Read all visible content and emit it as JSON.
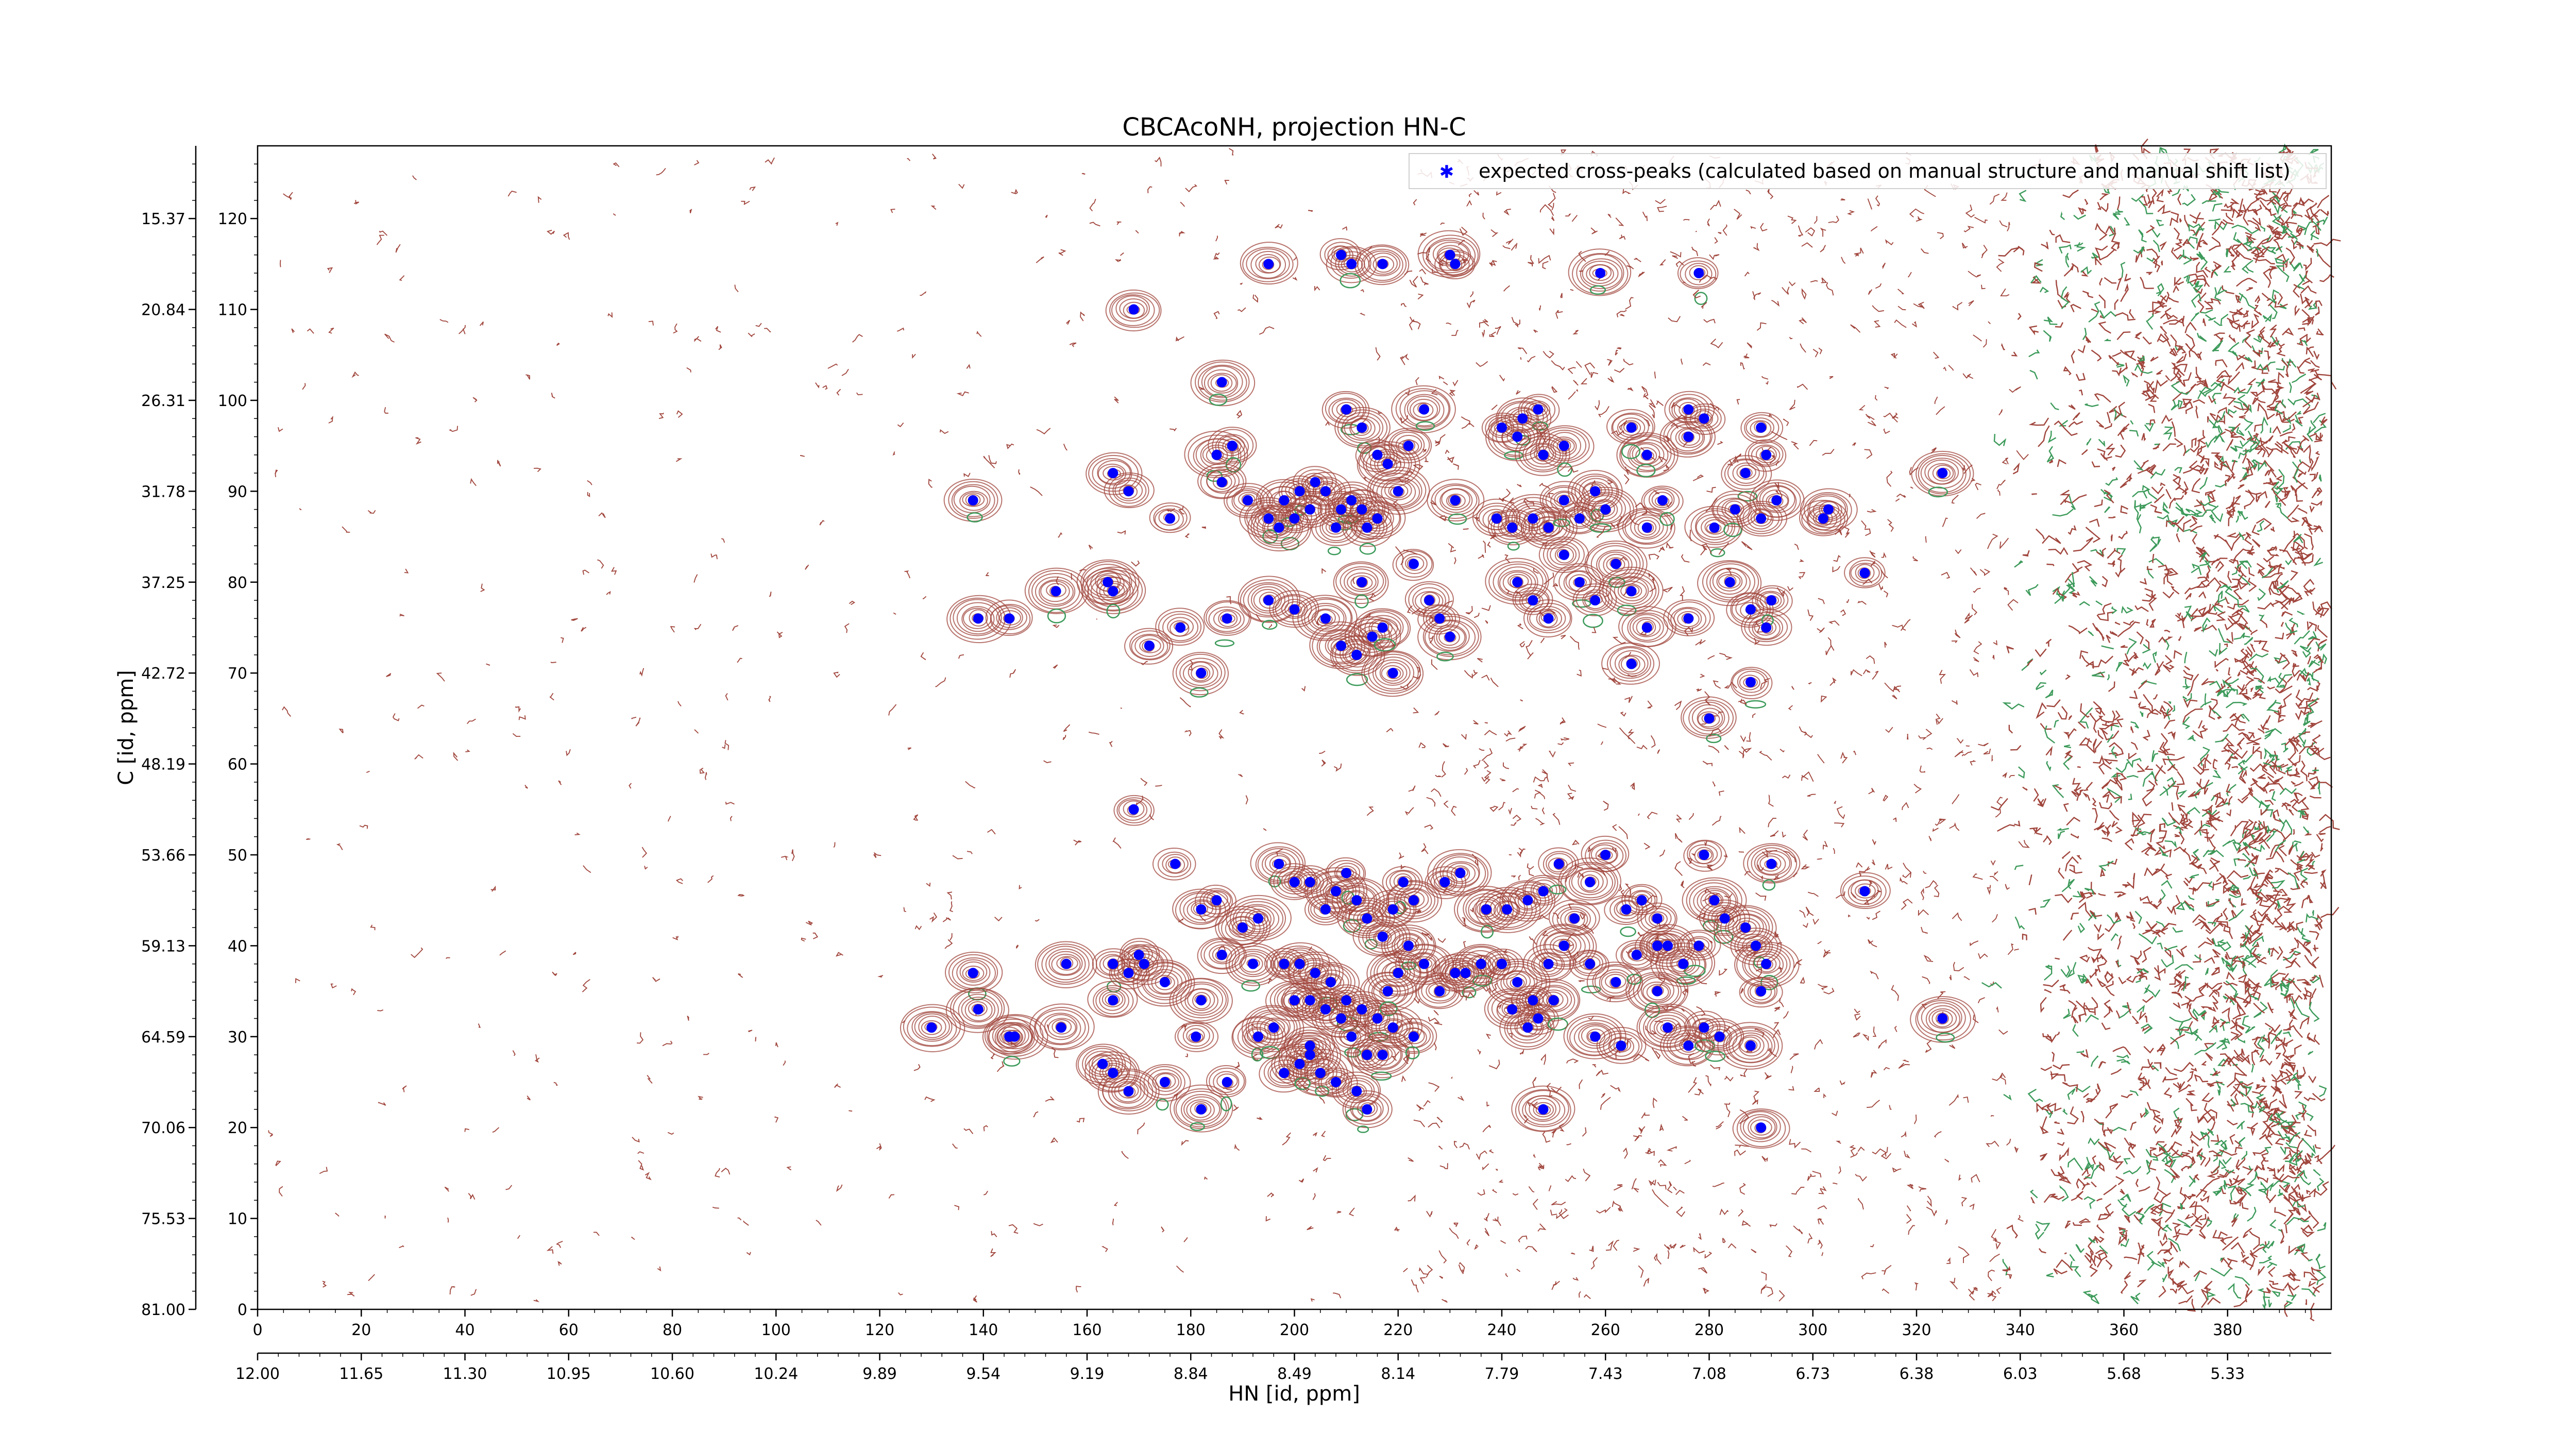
{
  "chart_data": {
    "type": "scatter",
    "title": "CBCAcoNH, projection HN-C",
    "xlabel": "HN [id, ppm]",
    "ylabel": "C [id, ppm]",
    "xlim": [
      0,
      400
    ],
    "ylim": [
      0,
      128
    ],
    "x_index_ticks": [
      "0",
      "20",
      "40",
      "60",
      "80",
      "100",
      "120",
      "140",
      "160",
      "180",
      "200",
      "220",
      "240",
      "260",
      "280",
      "300",
      "320",
      "340",
      "360",
      "380"
    ],
    "x_index_tick_values": [
      0,
      20,
      40,
      60,
      80,
      100,
      120,
      140,
      160,
      180,
      200,
      220,
      240,
      260,
      280,
      300,
      320,
      340,
      360,
      380
    ],
    "x_ppm_ticks": [
      "12.00",
      "11.65",
      "11.30",
      "10.95",
      "10.60",
      "10.24",
      "9.89",
      "9.54",
      "9.19",
      "8.84",
      "8.49",
      "8.14",
      "7.79",
      "7.43",
      "7.08",
      "6.73",
      "6.38",
      "6.03",
      "5.68",
      "5.33"
    ],
    "x_ppm_tick_values": [
      0,
      20,
      40,
      60,
      80,
      100,
      120,
      140,
      160,
      180,
      200,
      220,
      240,
      260,
      280,
      300,
      320,
      340,
      360,
      380
    ],
    "y_index_ticks": [
      "0",
      "10",
      "20",
      "30",
      "40",
      "50",
      "60",
      "70",
      "80",
      "90",
      "100",
      "110",
      "120"
    ],
    "y_index_tick_values": [
      0,
      10,
      20,
      30,
      40,
      50,
      60,
      70,
      80,
      90,
      100,
      110,
      120
    ],
    "y_ppm_ticks": [
      "81.00",
      "75.53",
      "70.06",
      "64.59",
      "59.13",
      "53.66",
      "48.19",
      "42.72",
      "37.25",
      "31.78",
      "26.31",
      "20.84",
      "15.37"
    ],
    "y_ppm_tick_values": [
      0,
      10,
      20,
      30,
      40,
      50,
      60,
      70,
      80,
      90,
      100,
      110,
      120
    ],
    "legend": {
      "label": "expected cross-peaks (calculated based on manual structure and manual shift list)",
      "position": "top-right"
    },
    "colors": {
      "peaks": "#0000ff",
      "positive_contours": "#a0453c",
      "negative_contours": "#3c9a5a"
    },
    "series": [
      {
        "name": "expected cross-peaks (calculated based on manual structure and manual shift list)",
        "points": [
          [
            195,
            115
          ],
          [
            209,
            116
          ],
          [
            211,
            115
          ],
          [
            217,
            115
          ],
          [
            230,
            116
          ],
          [
            231,
            115
          ],
          [
            259,
            114
          ],
          [
            278,
            114
          ],
          [
            169,
            110
          ],
          [
            186,
            102
          ],
          [
            210,
            99
          ],
          [
            213,
            97
          ],
          [
            216,
            94
          ],
          [
            218,
            93
          ],
          [
            222,
            95
          ],
          [
            225,
            99
          ],
          [
            240,
            97
          ],
          [
            244,
            98
          ],
          [
            247,
            99
          ],
          [
            243,
            96
          ],
          [
            248,
            94
          ],
          [
            252,
            95
          ],
          [
            268,
            94
          ],
          [
            265,
            97
          ],
          [
            276,
            99
          ],
          [
            279,
            98
          ],
          [
            276,
            96
          ],
          [
            290,
            97
          ],
          [
            291,
            94
          ],
          [
            287,
            92
          ],
          [
            185,
            94
          ],
          [
            188,
            95
          ],
          [
            186,
            91
          ],
          [
            191,
            89
          ],
          [
            195,
            87
          ],
          [
            198,
            89
          ],
          [
            201,
            90
          ],
          [
            204,
            91
          ],
          [
            206,
            90
          ],
          [
            209,
            88
          ],
          [
            211,
            89
          ],
          [
            213,
            88
          ],
          [
            216,
            87
          ],
          [
            200,
            87
          ],
          [
            203,
            88
          ],
          [
            197,
            86
          ],
          [
            214,
            86
          ],
          [
            208,
            86
          ],
          [
            220,
            90
          ],
          [
            231,
            89
          ],
          [
            239,
            87
          ],
          [
            242,
            86
          ],
          [
            246,
            87
          ],
          [
            249,
            86
          ],
          [
            252,
            89
          ],
          [
            255,
            87
          ],
          [
            258,
            90
          ],
          [
            260,
            88
          ],
          [
            268,
            86
          ],
          [
            271,
            89
          ],
          [
            281,
            86
          ],
          [
            285,
            88
          ],
          [
            290,
            87
          ],
          [
            293,
            89
          ],
          [
            302,
            87
          ],
          [
            303,
            88
          ],
          [
            325,
            92
          ],
          [
            138,
            89
          ],
          [
            165,
            92
          ],
          [
            168,
            90
          ],
          [
            176,
            87
          ],
          [
            187,
            76
          ],
          [
            195,
            78
          ],
          [
            200,
            77
          ],
          [
            206,
            76
          ],
          [
            209,
            73
          ],
          [
            212,
            72
          ],
          [
            215,
            74
          ],
          [
            217,
            75
          ],
          [
            213,
            80
          ],
          [
            219,
            70
          ],
          [
            223,
            82
          ],
          [
            226,
            78
          ],
          [
            228,
            76
          ],
          [
            230,
            74
          ],
          [
            243,
            80
          ],
          [
            246,
            78
          ],
          [
            249,
            76
          ],
          [
            252,
            83
          ],
          [
            255,
            80
          ],
          [
            258,
            78
          ],
          [
            262,
            82
          ],
          [
            265,
            79
          ],
          [
            268,
            75
          ],
          [
            276,
            76
          ],
          [
            284,
            80
          ],
          [
            288,
            77
          ],
          [
            291,
            75
          ],
          [
            292,
            78
          ],
          [
            310,
            81
          ],
          [
            139,
            76
          ],
          [
            145,
            76
          ],
          [
            154,
            79
          ],
          [
            164,
            80
          ],
          [
            165,
            79
          ],
          [
            172,
            73
          ],
          [
            178,
            75
          ],
          [
            182,
            70
          ],
          [
            265,
            71
          ],
          [
            288,
            69
          ],
          [
            280,
            65
          ],
          [
            169,
            55
          ],
          [
            177,
            49
          ],
          [
            182,
            44
          ],
          [
            185,
            45
          ],
          [
            190,
            42
          ],
          [
            193,
            43
          ],
          [
            197,
            49
          ],
          [
            200,
            47
          ],
          [
            203,
            47
          ],
          [
            206,
            44
          ],
          [
            208,
            46
          ],
          [
            210,
            48
          ],
          [
            212,
            45
          ],
          [
            214,
            43
          ],
          [
            217,
            41
          ],
          [
            219,
            44
          ],
          [
            221,
            47
          ],
          [
            223,
            45
          ],
          [
            229,
            47
          ],
          [
            232,
            48
          ],
          [
            237,
            44
          ],
          [
            241,
            44
          ],
          [
            245,
            45
          ],
          [
            248,
            46
          ],
          [
            251,
            49
          ],
          [
            254,
            43
          ],
          [
            257,
            47
          ],
          [
            260,
            50
          ],
          [
            264,
            44
          ],
          [
            267,
            45
          ],
          [
            270,
            43
          ],
          [
            272,
            40
          ],
          [
            279,
            50
          ],
          [
            281,
            45
          ],
          [
            283,
            43
          ],
          [
            287,
            42
          ],
          [
            289,
            40
          ],
          [
            291,
            38
          ],
          [
            292,
            49
          ],
          [
            310,
            46
          ],
          [
            186,
            39
          ],
          [
            192,
            38
          ],
          [
            198,
            38
          ],
          [
            201,
            38
          ],
          [
            204,
            37
          ],
          [
            207,
            36
          ],
          [
            210,
            34
          ],
          [
            213,
            33
          ],
          [
            216,
            32
          ],
          [
            218,
            35
          ],
          [
            220,
            37
          ],
          [
            222,
            40
          ],
          [
            225,
            38
          ],
          [
            233,
            37
          ],
          [
            236,
            38
          ],
          [
            240,
            38
          ],
          [
            243,
            36
          ],
          [
            246,
            34
          ],
          [
            249,
            38
          ],
          [
            252,
            40
          ],
          [
            257,
            38
          ],
          [
            262,
            36
          ],
          [
            266,
            39
          ],
          [
            270,
            40
          ],
          [
            275,
            38
          ],
          [
            278,
            40
          ],
          [
            138,
            37
          ],
          [
            139,
            33
          ],
          [
            146,
            30
          ],
          [
            156,
            38
          ],
          [
            165,
            38
          ],
          [
            165,
            34
          ],
          [
            170,
            39
          ],
          [
            182,
            34
          ],
          [
            200,
            34
          ],
          [
            203,
            34
          ],
          [
            206,
            33
          ],
          [
            209,
            32
          ],
          [
            211,
            30
          ],
          [
            214,
            28
          ],
          [
            217,
            28
          ],
          [
            219,
            31
          ],
          [
            223,
            30
          ],
          [
            228,
            35
          ],
          [
            231,
            37
          ],
          [
            130,
            31
          ],
          [
            145,
            30
          ],
          [
            155,
            31
          ],
          [
            168,
            37
          ],
          [
            171,
            38
          ],
          [
            175,
            36
          ],
          [
            181,
            30
          ],
          [
            193,
            30
          ],
          [
            196,
            31
          ],
          [
            203,
            29
          ],
          [
            205,
            26
          ],
          [
            208,
            25
          ],
          [
            242,
            33
          ],
          [
            245,
            31
          ],
          [
            247,
            32
          ],
          [
            250,
            34
          ],
          [
            276,
            29
          ],
          [
            279,
            31
          ],
          [
            282,
            30
          ],
          [
            288,
            29
          ],
          [
            290,
            35
          ],
          [
            163,
            27
          ],
          [
            165,
            26
          ],
          [
            168,
            24
          ],
          [
            175,
            25
          ],
          [
            182,
            22
          ],
          [
            187,
            25
          ],
          [
            198,
            26
          ],
          [
            201,
            27
          ],
          [
            203,
            28
          ],
          [
            212,
            24
          ],
          [
            214,
            22
          ],
          [
            248,
            22
          ],
          [
            290,
            20
          ],
          [
            325,
            32
          ],
          [
            263,
            29
          ],
          [
            258,
            30
          ],
          [
            270,
            35
          ],
          [
            272,
            31
          ]
        ]
      }
    ]
  }
}
